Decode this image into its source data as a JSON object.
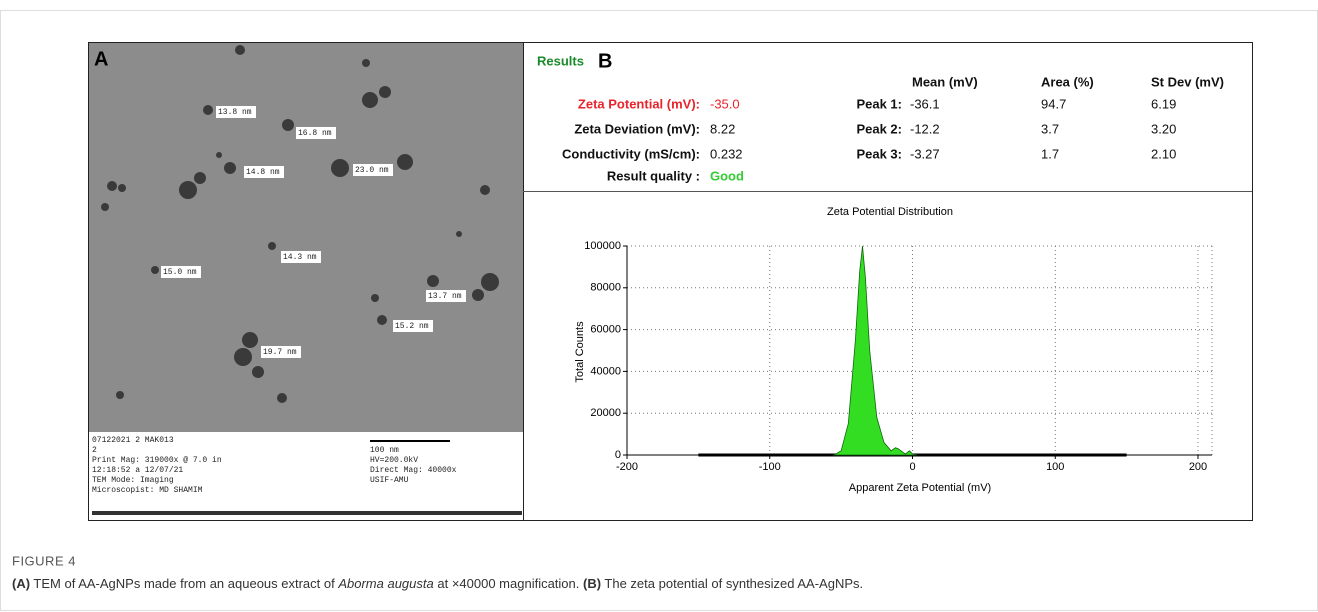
{
  "panel_a": {
    "label": "A",
    "particle_labels": [
      "13.8 nm",
      "16.8 nm",
      "14.8 nm",
      "23.0 nm",
      "14.3 nm",
      "15.0 nm",
      "13.7 nm",
      "15.2 nm",
      "19.7 nm"
    ],
    "info_left": [
      "07122021 2 MAK013",
      "2",
      "Print Mag:  319000x @ 7.0 in",
      "12:18:52 a 12/07/21",
      "TEM Mode: Imaging",
      "Microscopist: MD SHAMIM"
    ],
    "info_right": [
      "100 nm",
      "HV=200.0kV",
      "Direct Mag: 40000x",
      "USIF-AMU"
    ]
  },
  "panel_b": {
    "label": "B",
    "results_title": "Results",
    "summary": [
      {
        "label": "Zeta Potential (mV):",
        "value": "-35.0"
      },
      {
        "label": "Zeta Deviation (mV):",
        "value": "8.22"
      },
      {
        "label": "Conductivity (mS/cm):",
        "value": "0.232"
      },
      {
        "label": "Result quality :",
        "value": "Good"
      }
    ],
    "peak_headers": [
      "Mean (mV)",
      "Area (%)",
      "St Dev (mV)"
    ],
    "peaks": [
      {
        "label": "Peak 1:",
        "values": [
          "-36.1",
          "94.7",
          "6.19"
        ]
      },
      {
        "label": "Peak 2:",
        "values": [
          "-12.2",
          "3.7",
          "3.20"
        ]
      },
      {
        "label": "Peak 3:",
        "values": [
          "-3.27",
          "1.7",
          "2.10"
        ]
      }
    ]
  },
  "chart_data": {
    "type": "area",
    "title": "Zeta Potential Distribution",
    "x_label": "Apparent Zeta Potential (mV)",
    "y_label": "Total Counts",
    "x": [
      -55,
      -50,
      -45,
      -40,
      -37,
      -35,
      -33,
      -30,
      -25,
      -20,
      -15,
      -12,
      -10,
      -7,
      -5,
      -2,
      0,
      3
    ],
    "values": [
      0,
      2000,
      15000,
      55000,
      88000,
      100000,
      85000,
      50000,
      18000,
      6000,
      2000,
      3500,
      3000,
      1500,
      500,
      2000,
      500,
      0
    ],
    "color": "#33dd22",
    "xlim": [
      -200,
      200
    ],
    "ylim": [
      0,
      100000
    ],
    "xticks": [
      -200,
      -100,
      0,
      100,
      200
    ],
    "yticks": [
      0,
      20000,
      40000,
      60000,
      80000,
      100000
    ],
    "grid": true
  },
  "caption": {
    "figure_label": "FIGURE 4",
    "parts": [
      "(A)",
      " TEM of AA-AgNPs made from an aqueous extract of ",
      "Aborma augusta",
      " at ×40000 magnification. ",
      "(B)",
      " The zeta potential of synthesized AA-AgNPs."
    ]
  }
}
